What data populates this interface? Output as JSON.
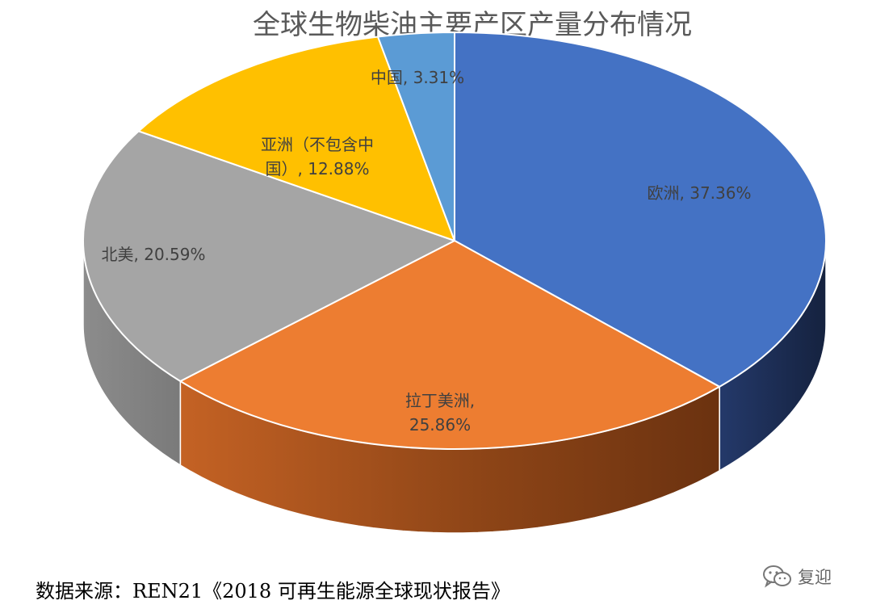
{
  "chart_data": {
    "type": "pie",
    "title": "全球生物柴油主要产区产量分布情况",
    "slices": [
      {
        "label_lines": [
          "欧洲, 37.36%"
        ],
        "name": "欧洲",
        "value": 37.36,
        "color": "#4472C4",
        "side_color": "#1B2C4F"
      },
      {
        "label_lines": [
          "拉丁美洲,",
          "25.86%"
        ],
        "name": "拉丁美洲",
        "value": 25.86,
        "color": "#ED7D31",
        "side_color": "#A14E1C"
      },
      {
        "label_lines": [
          "北美, 20.59%"
        ],
        "name": "北美",
        "value": 20.59,
        "color": "#A5A5A5",
        "side_color": "#8A8A8A"
      },
      {
        "label_lines": [
          "亚洲（不包含中",
          "国）, 12.88%"
        ],
        "name": "亚洲（不包含中国）",
        "value": 12.88,
        "color": "#FFC000",
        "side_color": "#B38600"
      },
      {
        "label_lines": [
          "中国, 3.31%"
        ],
        "name": "中国",
        "value": 3.31,
        "color": "#5B9BD5",
        "side_color": "#2E5C8A"
      }
    ],
    "start": "12 o'clock, clockwise",
    "view": "3d-tilted",
    "legend": "none, data labels on slices"
  },
  "footer": {
    "source": "数据来源：REN21《2018 可再生能源全球现状报告》",
    "watermark_text": "复迎",
    "watermark_icon": "wechat-icon"
  }
}
